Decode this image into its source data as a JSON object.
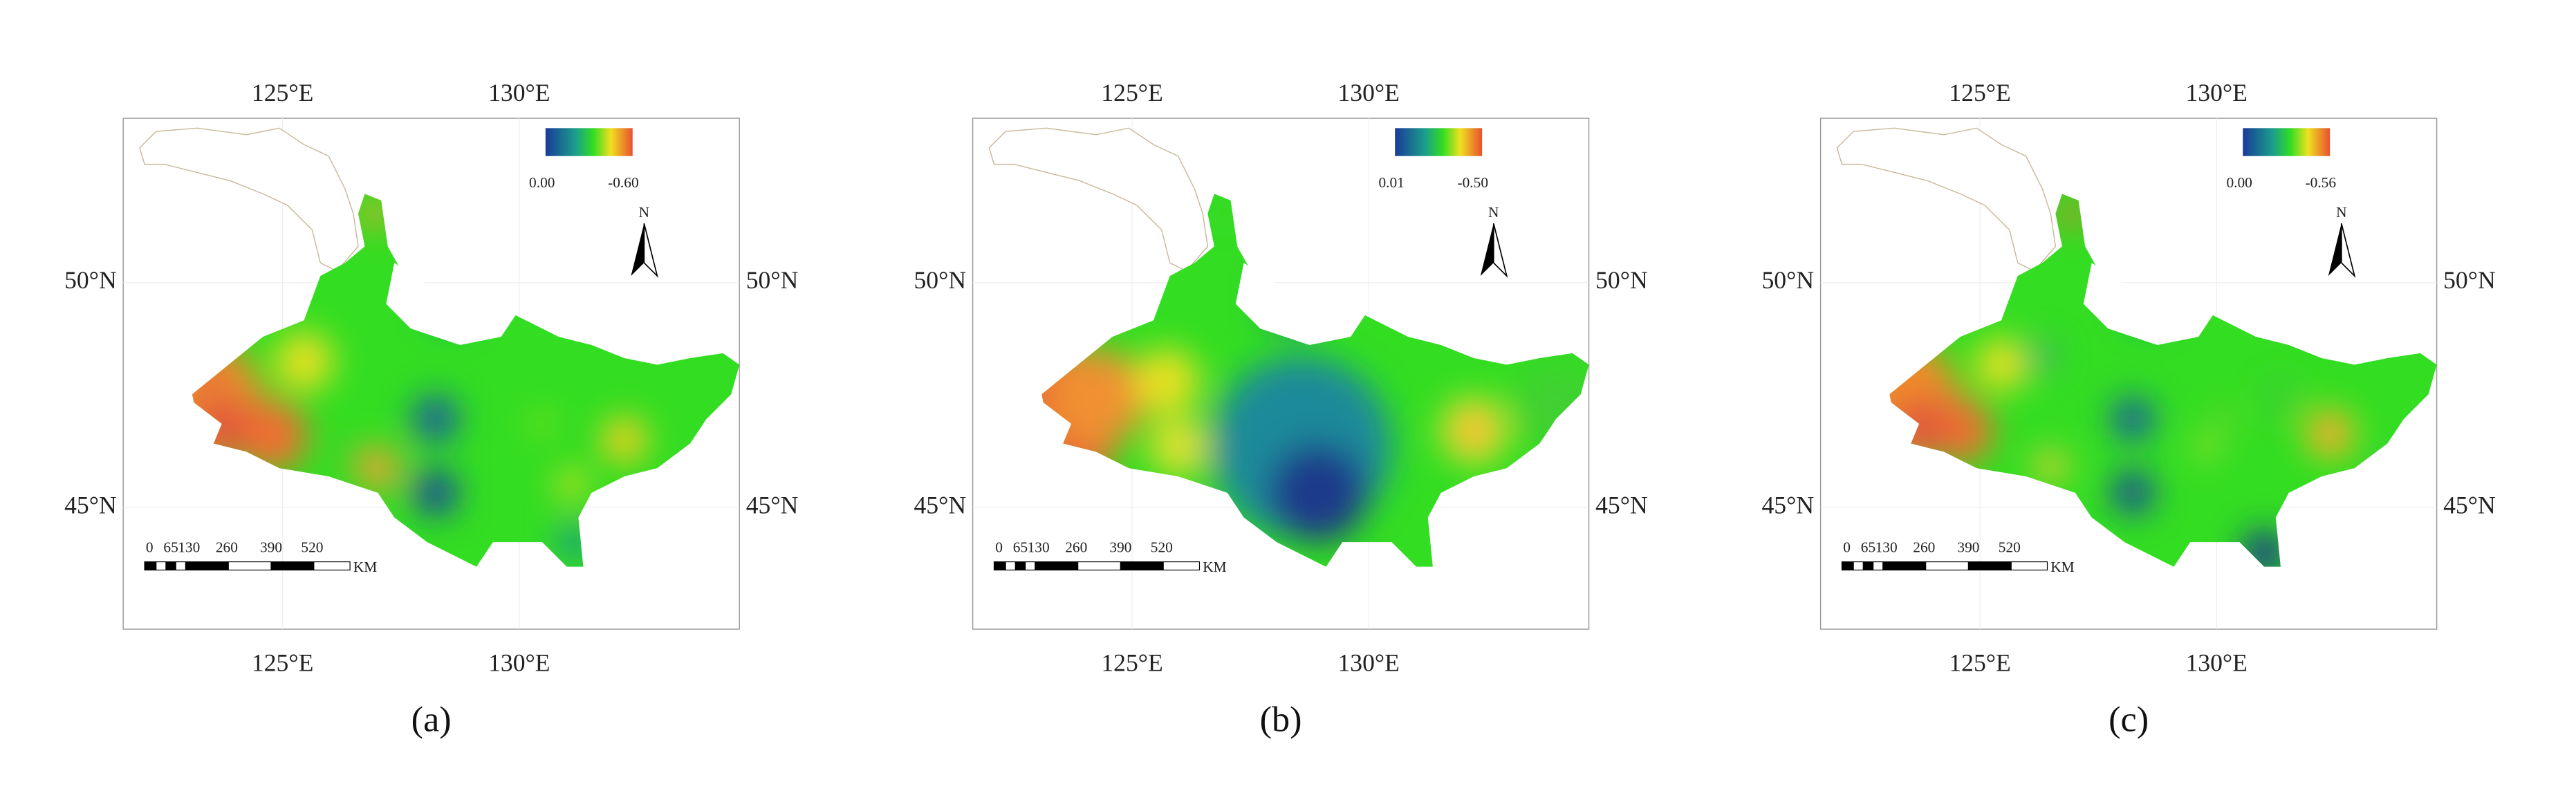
{
  "axes": {
    "lon_labels": [
      "125°E",
      "130°E"
    ],
    "lat_labels": [
      "50°N",
      "45°N"
    ]
  },
  "scale_bar": {
    "ticks": [
      "0",
      "65",
      "130",
      "260",
      "390",
      "520"
    ],
    "unit": "KM"
  },
  "north": "N",
  "panels": [
    {
      "label": "(a)",
      "legend_labels": [
        "0.00",
        "-0.60"
      ]
    },
    {
      "label": "(b)",
      "legend_labels": [
        "0.01",
        "-0.50"
      ]
    },
    {
      "label": "(c)",
      "legend_labels": [
        "0.00",
        "-0.56"
      ]
    }
  ]
}
